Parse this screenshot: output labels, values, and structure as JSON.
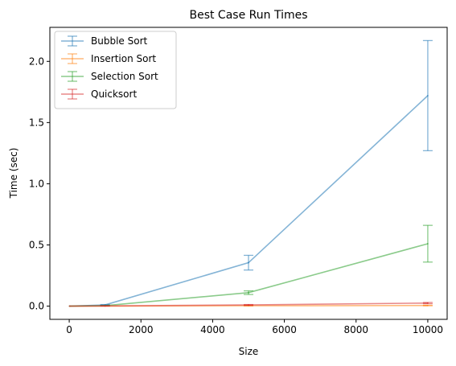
{
  "chart_data": {
    "type": "line",
    "title": "Best Case Run Times",
    "xlabel": "Size",
    "ylabel": "Time (sec)",
    "xlim": [
      -540,
      10540
    ],
    "ylim": [
      -0.108,
      2.278
    ],
    "xticks": [
      0,
      2000,
      4000,
      6000,
      8000,
      10000
    ],
    "yticks": [
      0.0,
      0.5,
      1.0,
      1.5,
      2.0
    ],
    "xtick_labels": [
      "0",
      "2000",
      "4000",
      "6000",
      "8000",
      "10000"
    ],
    "ytick_labels": [
      "0.0",
      "0.5",
      "1.0",
      "1.5",
      "2.0"
    ],
    "grid": false,
    "legend_position": "upper-left",
    "x": [
      10,
      1000,
      5000,
      10000
    ],
    "series": [
      {
        "name": "Bubble Sort",
        "color": "#1f77b4",
        "values": [
          0.0,
          0.01,
          0.355,
          1.72
        ],
        "errors": [
          0.0,
          0.003,
          0.06,
          0.45
        ]
      },
      {
        "name": "Insertion Sort",
        "color": "#ff7f0e",
        "values": [
          0.0,
          0.0,
          0.003,
          0.005
        ],
        "errors": [
          0.0,
          0.0,
          0.001,
          0.002
        ]
      },
      {
        "name": "Selection Sort",
        "color": "#2ca02c",
        "values": [
          0.0,
          0.004,
          0.11,
          0.51
        ],
        "errors": [
          0.0,
          0.001,
          0.015,
          0.15
        ]
      },
      {
        "name": "Quicksort",
        "color": "#d62728",
        "values": [
          0.0,
          0.002,
          0.01,
          0.025
        ],
        "errors": [
          0.0,
          0.001,
          0.003,
          0.005
        ]
      }
    ]
  }
}
